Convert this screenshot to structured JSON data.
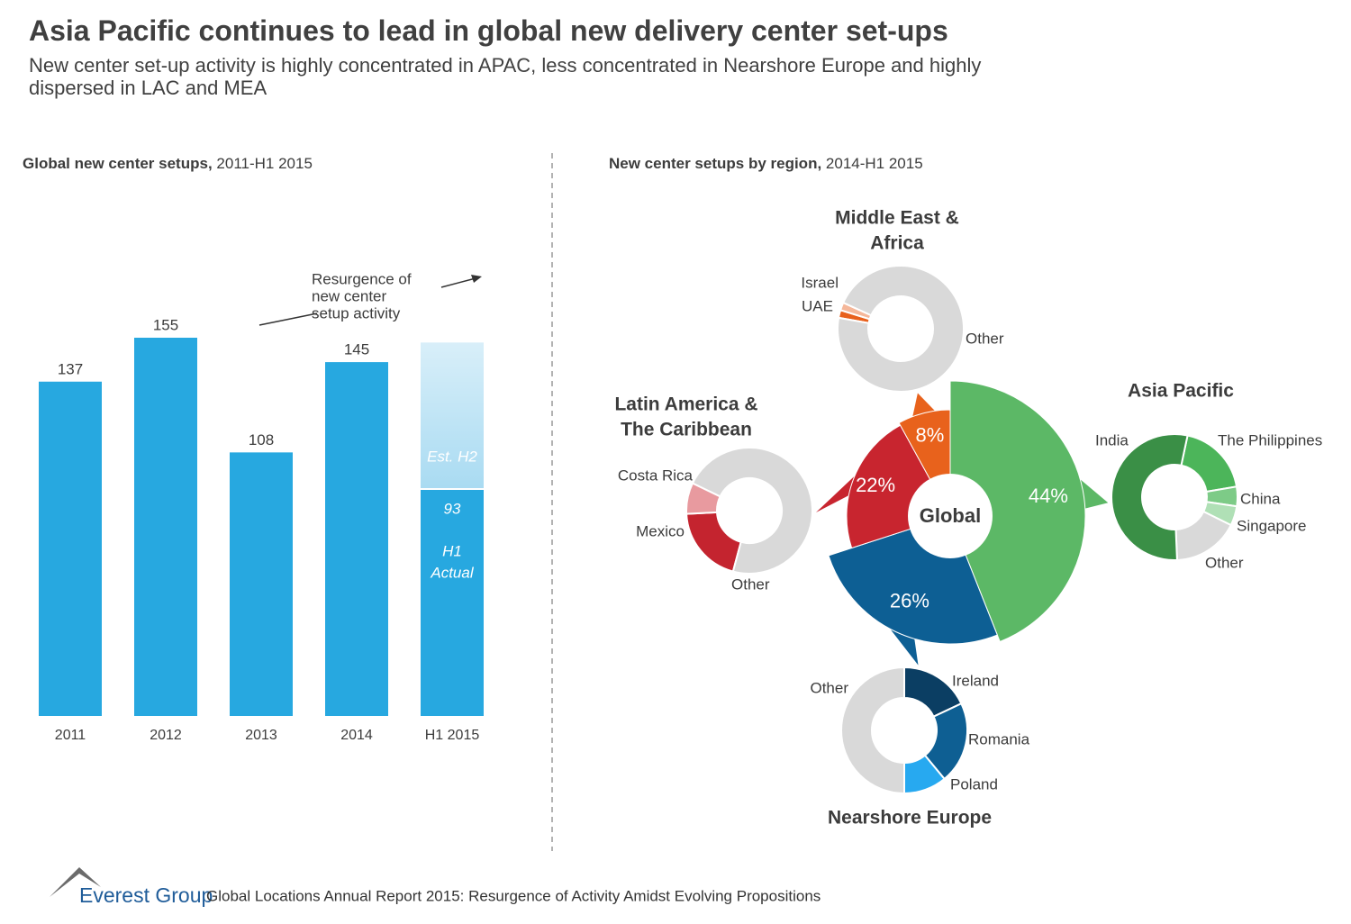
{
  "header": {
    "title": "Asia Pacific continues to lead in global new delivery center set-ups",
    "subtitle": "New center set-up activity is highly concentrated in APAC, less concentrated in Nearshore Europe and highly dispersed in LAC and MEA"
  },
  "chart_data": [
    {
      "type": "bar",
      "title": "Global new center setups,",
      "period": "2011-H1 2015",
      "categories": [
        "2011",
        "2012",
        "2013",
        "2014",
        "H1 2015"
      ],
      "values": [
        137,
        155,
        108,
        145,
        93
      ],
      "color": "#27a8e0",
      "estimate": {
        "label": "Est. H2",
        "value": 60,
        "color": "#a9dbf2"
      },
      "actual_label": [
        "H1",
        "Actual"
      ],
      "annotation": [
        "Resurgence of",
        "new center",
        "setup activity"
      ]
    },
    {
      "type": "pie",
      "title": "New center setups by region,",
      "period": "2014-H1 2015",
      "center_label": "Global",
      "values": [
        44,
        26,
        22,
        8
      ],
      "value_labels": [
        "44%",
        "26%",
        "22%",
        "8%"
      ],
      "colors": [
        "#5cb866",
        "#0d5f94",
        "#c8252f",
        "#e8621c"
      ]
    },
    {
      "type": "donut",
      "title": [
        "Asia Pacific"
      ],
      "categories": [
        "The Philippines",
        "China",
        "Singapore",
        "Other",
        "India"
      ],
      "values": [
        19,
        5,
        5,
        17,
        54
      ],
      "colors": [
        "#4cb55a",
        "#7dcb87",
        "#b0e0b6",
        "#d9d9d9",
        "#3a8f46"
      ]
    },
    {
      "type": "donut",
      "title": [
        "Nearshore Europe"
      ],
      "categories": [
        "Ireland",
        "Romania",
        "Poland",
        "Other"
      ],
      "values": [
        18,
        21,
        11,
        50
      ],
      "colors": [
        "#0b3e63",
        "#0e5f93",
        "#27a9f0",
        "#d9d9d9"
      ]
    },
    {
      "type": "donut",
      "title": [
        "Latin America &",
        "The Caribbean"
      ],
      "categories": [
        "Mexico",
        "Costa Rica",
        "Other"
      ],
      "values": [
        20,
        8,
        72
      ],
      "colors": [
        "#c4242f",
        "#e89a9f",
        "#d9d9d9"
      ]
    },
    {
      "type": "donut",
      "title": [
        "Middle East &",
        "Africa"
      ],
      "categories": [
        "UAE",
        "Israel",
        "Other"
      ],
      "values": [
        2,
        2,
        96
      ],
      "colors": [
        "#e8601c",
        "#f5b79a",
        "#d9d9d9"
      ]
    }
  ],
  "footer": {
    "brand": "Everest Group",
    "report": "Global Locations Annual Report 2015: Resurgence of Activity Amidst Evolving Propositions"
  }
}
